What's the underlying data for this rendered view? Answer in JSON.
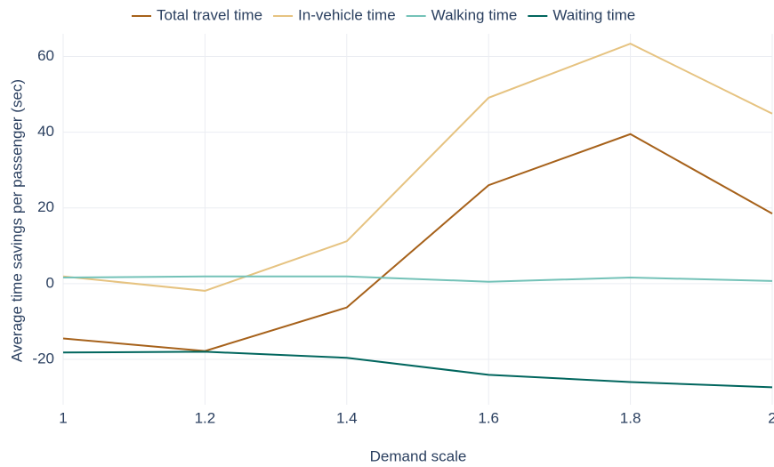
{
  "chart_data": {
    "type": "line",
    "x_label": "Demand scale",
    "y_label": "Average time savings per passenger (sec)",
    "x": [
      1,
      1.2,
      1.4,
      1.6,
      1.8,
      2
    ],
    "series": [
      {
        "name": "Total travel time",
        "color": "#a6611a",
        "values": [
          -14.5,
          -17.8,
          -6.3,
          26,
          39.5,
          18.5
        ]
      },
      {
        "name": "In-vehicle time",
        "color": "#e6c381",
        "values": [
          1.9,
          -1.9,
          11.2,
          49.1,
          63.4,
          44.9
        ]
      },
      {
        "name": "Walking time",
        "color": "#74c2b8",
        "values": [
          1.6,
          1.9,
          1.9,
          0.5,
          1.6,
          0.7
        ]
      },
      {
        "name": "Waiting time",
        "color": "#01665e",
        "values": [
          -18.2,
          -18,
          -19.6,
          -24.1,
          -26,
          -27.4
        ]
      }
    ],
    "xlim": [
      1,
      2
    ],
    "xticks": [
      1,
      1.2,
      1.4,
      1.6,
      1.8,
      2
    ],
    "ylim": [
      -32,
      66
    ],
    "yticks": [
      -20,
      0,
      20,
      40,
      60
    ],
    "grid": true,
    "legend": "top"
  }
}
